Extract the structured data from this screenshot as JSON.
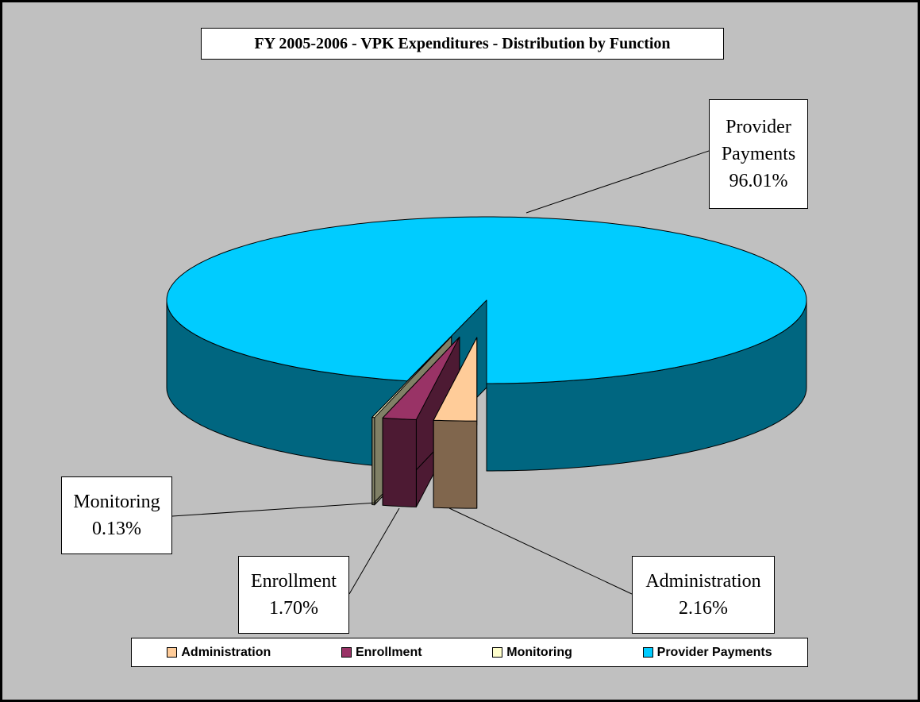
{
  "chart_data": {
    "type": "pie",
    "title": "FY 2005-2006 - VPK Expenditures - Distribution by Function",
    "categories": [
      "Administration",
      "Enrollment",
      "Monitoring",
      "Provider Payments"
    ],
    "values": [
      2.16,
      1.7,
      0.13,
      96.01
    ],
    "value_labels": [
      "2.16%",
      "1.70%",
      "0.13%",
      "96.01%"
    ],
    "colors": [
      "#FFCC99",
      "#993366",
      "#FFFFCC",
      "#00CCFF"
    ],
    "legend": "bottom"
  }
}
